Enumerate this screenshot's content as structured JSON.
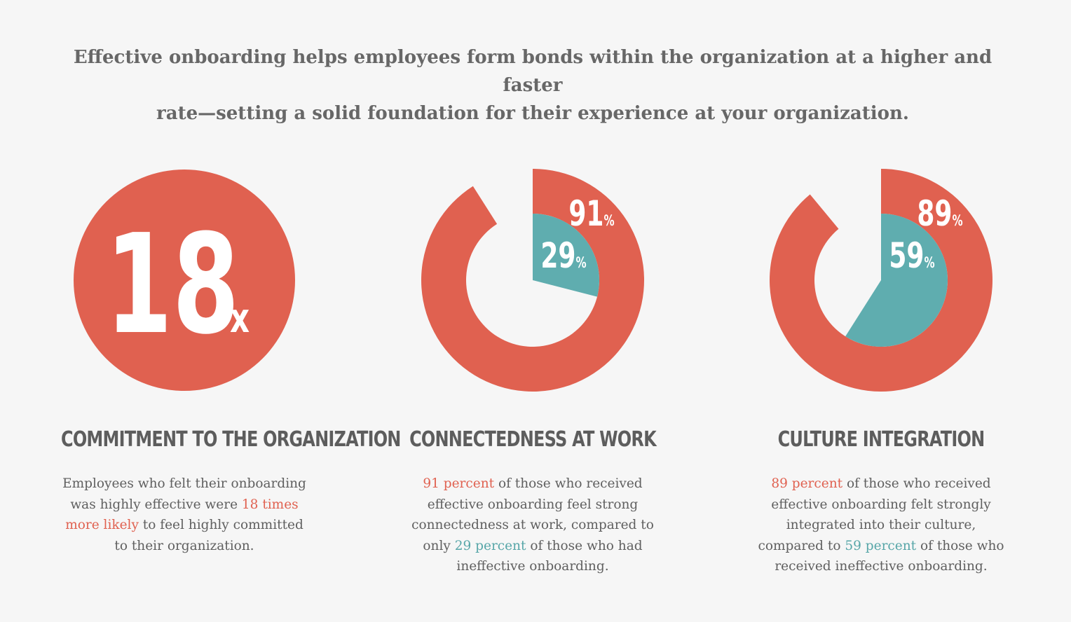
{
  "intro": {
    "line1": "Effective onboarding helps employees form bonds within the organization at a higher and faster",
    "line2": "rate—setting a solid foundation for their experience at your organization."
  },
  "colors": {
    "accent_red": "#e06150",
    "accent_teal": "#5fadaf",
    "background": "#f6f6f6",
    "text": "#5f5f5f"
  },
  "stat": {
    "value": "18",
    "unit": "x"
  },
  "chart_data": [
    {
      "type": "pie",
      "title": "CONNECTEDNESS AT WORK",
      "series": [
        {
          "name": "effective onboarding",
          "value": 91,
          "label": "91",
          "unit": "%"
        },
        {
          "name": "ineffective onboarding",
          "value": 29,
          "label": "29",
          "unit": "%"
        }
      ]
    },
    {
      "type": "pie",
      "title": "CULTURE INTEGRATION",
      "series": [
        {
          "name": "effective onboarding",
          "value": 89,
          "label": "89",
          "unit": "%"
        },
        {
          "name": "ineffective onboarding",
          "value": 59,
          "label": "59",
          "unit": "%"
        }
      ]
    }
  ],
  "sections": {
    "commitment": {
      "title": "COMMITMENT TO THE ORGANIZATION",
      "line1": "Employees who felt their onboarding",
      "line2a": "was highly effective were ",
      "line2b": "18 times",
      "line3a": "more likely",
      "line3b": " to feel highly committed",
      "line4": "to their organization."
    },
    "connectedness": {
      "title": "CONNECTEDNESS AT WORK",
      "line1a": "91 percent",
      "line1b": " of those who received",
      "line2": "effective onboarding feel strong",
      "line3": "connectedness at work, compared to",
      "line4a": "only ",
      "line4b": "29 percent",
      "line4c": " of those who had",
      "line5": "ineffective onboarding."
    },
    "culture": {
      "title": "CULTURE INTEGRATION",
      "line1a": "89 percent",
      "line1b": " of those who received",
      "line2": "effective onboarding felt strongly",
      "line3": "integrated into their culture,",
      "line4a": "compared to ",
      "line4b": "59 percent",
      "line4c": " of those who",
      "line5": "received ineffective onboarding."
    }
  }
}
